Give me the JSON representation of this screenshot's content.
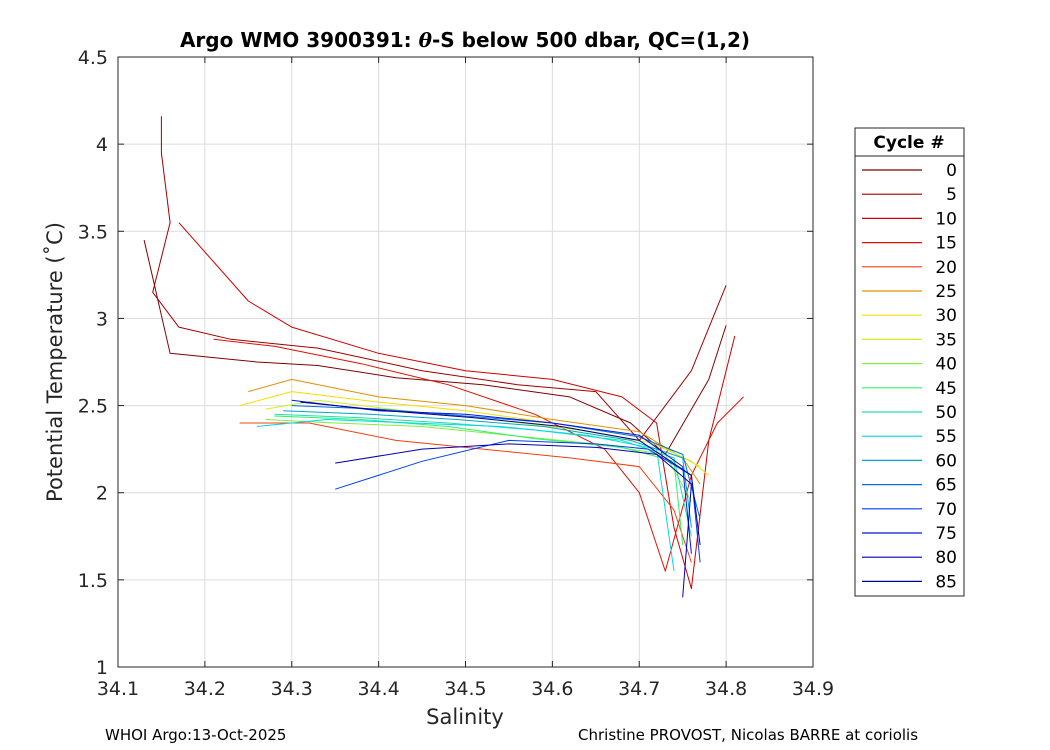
{
  "chart_data": {
    "type": "line",
    "title": "Argo WMO 3900391: θ-S below 500 dbar,  QC=(1,2)",
    "title_prefix": "Argo WMO 3900391: ",
    "title_theta": "θ",
    "title_suffix": "-S below 500 dbar,  QC=(1,2)",
    "xlabel": "Salinity",
    "ylabel": "Potential Temperature (˚C)",
    "xlim": [
      34.1,
      34.9
    ],
    "ylim": [
      1,
      4.5
    ],
    "xticks": [
      "34.1",
      "34.2",
      "34.3",
      "34.4",
      "34.5",
      "34.6",
      "34.7",
      "34.8",
      "34.9"
    ],
    "yticks": [
      "1",
      "1.5",
      "2",
      "2.5",
      "3",
      "3.5",
      "4",
      "4.5"
    ],
    "grid": true,
    "legend": {
      "title": "Cycle #",
      "placement": "right",
      "entries": [
        {
          "label": "0",
          "color": "#800000"
        },
        {
          "label": "5",
          "color": "#a00000"
        },
        {
          "label": "10",
          "color": "#cc0000"
        },
        {
          "label": "15",
          "color": "#e01000"
        },
        {
          "label": "20",
          "color": "#f04010"
        },
        {
          "label": "25",
          "color": "#e09000"
        },
        {
          "label": "30",
          "color": "#f0e000"
        },
        {
          "label": "35",
          "color": "#d0f020"
        },
        {
          "label": "40",
          "color": "#80f040"
        },
        {
          "label": "45",
          "color": "#30f070"
        },
        {
          "label": "50",
          "color": "#20e0b0"
        },
        {
          "label": "55",
          "color": "#00d8e8"
        },
        {
          "label": "60",
          "color": "#00a8c8"
        },
        {
          "label": "65",
          "color": "#0070e0"
        },
        {
          "label": "70",
          "color": "#0040f0"
        },
        {
          "label": "75",
          "color": "#0018e0"
        },
        {
          "label": "80",
          "color": "#0000b0"
        },
        {
          "label": "85",
          "color": "#000090"
        }
      ]
    },
    "series": [
      {
        "name": "0",
        "x": [
          34.13,
          34.16,
          34.2,
          34.26,
          34.33,
          34.42,
          34.52,
          34.62,
          34.69,
          34.73,
          34.78,
          34.8
        ],
        "y": [
          3.45,
          2.8,
          2.78,
          2.75,
          2.73,
          2.66,
          2.62,
          2.55,
          2.4,
          2.22,
          2.65,
          2.96
        ]
      },
      {
        "name": "5",
        "x": [
          34.15,
          34.15,
          34.16,
          34.14,
          34.17,
          34.23,
          34.33,
          34.45,
          34.56,
          34.65,
          34.7,
          34.76,
          34.8
        ],
        "y": [
          4.16,
          3.95,
          3.55,
          3.15,
          2.95,
          2.88,
          2.83,
          2.7,
          2.62,
          2.58,
          2.3,
          2.7,
          3.19
        ]
      },
      {
        "name": "10",
        "x": [
          34.17,
          34.25,
          34.3,
          34.4,
          34.5,
          34.6,
          34.68,
          34.72,
          34.74,
          34.76,
          34.78,
          34.81
        ],
        "y": [
          3.55,
          3.1,
          2.95,
          2.8,
          2.7,
          2.65,
          2.55,
          2.4,
          1.8,
          1.45,
          2.3,
          2.9
        ]
      },
      {
        "name": "15",
        "x": [
          34.21,
          34.28,
          34.38,
          34.48,
          34.58,
          34.66,
          34.7,
          34.73,
          34.76,
          34.79,
          34.82
        ],
        "y": [
          2.88,
          2.84,
          2.74,
          2.62,
          2.45,
          2.25,
          2.0,
          1.55,
          2.1,
          2.4,
          2.55
        ]
      },
      {
        "name": "20",
        "x": [
          34.24,
          34.32,
          34.42,
          34.52,
          34.62,
          34.7,
          34.74,
          34.76
        ],
        "y": [
          2.4,
          2.4,
          2.3,
          2.25,
          2.2,
          2.15,
          1.9,
          1.6
        ]
      },
      {
        "name": "25",
        "x": [
          34.25,
          34.3,
          34.4,
          34.5,
          34.6,
          34.7,
          34.75,
          34.77
        ],
        "y": [
          2.58,
          2.65,
          2.55,
          2.5,
          2.42,
          2.35,
          2.2,
          2.05
        ]
      },
      {
        "name": "30",
        "x": [
          34.24,
          34.3,
          34.4,
          34.5,
          34.6,
          34.7,
          34.76,
          34.78
        ],
        "y": [
          2.5,
          2.58,
          2.52,
          2.47,
          2.4,
          2.32,
          2.18,
          2.1
        ]
      },
      {
        "name": "35",
        "x": [
          34.27,
          34.33,
          34.43,
          34.53,
          34.63,
          34.72,
          34.77
        ],
        "y": [
          2.48,
          2.53,
          2.47,
          2.42,
          2.36,
          2.28,
          2.15
        ]
      },
      {
        "name": "40",
        "x": [
          34.27,
          34.35,
          34.45,
          34.55,
          34.65,
          34.73,
          34.76
        ],
        "y": [
          2.42,
          2.4,
          2.38,
          2.33,
          2.28,
          2.22,
          1.95
        ]
      },
      {
        "name": "45",
        "x": [
          34.28,
          34.38,
          34.48,
          34.58,
          34.68,
          34.74,
          34.75
        ],
        "y": [
          2.44,
          2.42,
          2.38,
          2.31,
          2.26,
          2.18,
          1.7
        ]
      },
      {
        "name": "50",
        "x": [
          34.28,
          34.38,
          34.48,
          34.58,
          34.68,
          34.74,
          34.76
        ],
        "y": [
          2.45,
          2.43,
          2.4,
          2.36,
          2.3,
          2.2,
          1.75
        ]
      },
      {
        "name": "55",
        "x": [
          34.26,
          34.34,
          34.44,
          34.54,
          34.64,
          34.72,
          34.74
        ],
        "y": [
          2.38,
          2.42,
          2.4,
          2.38,
          2.33,
          2.25,
          1.55
        ]
      },
      {
        "name": "60",
        "x": [
          34.29,
          34.39,
          34.49,
          34.59,
          34.69,
          34.75,
          34.76
        ],
        "y": [
          2.47,
          2.45,
          2.42,
          2.38,
          2.3,
          2.2,
          1.8
        ]
      },
      {
        "name": "65",
        "x": [
          34.3,
          34.4,
          34.5,
          34.6,
          34.7,
          34.75,
          34.77
        ],
        "y": [
          2.5,
          2.48,
          2.44,
          2.4,
          2.32,
          2.22,
          1.85
        ]
      },
      {
        "name": "70",
        "x": [
          34.35,
          34.45,
          34.55,
          34.65,
          34.71,
          34.76,
          34.77
        ],
        "y": [
          2.02,
          2.18,
          2.3,
          2.28,
          2.25,
          2.1,
          1.6
        ]
      },
      {
        "name": "75",
        "x": [
          34.3,
          34.4,
          34.5,
          34.6,
          34.7,
          34.75,
          34.76
        ],
        "y": [
          2.53,
          2.47,
          2.45,
          2.4,
          2.33,
          2.15,
          1.65
        ]
      },
      {
        "name": "80",
        "x": [
          34.35,
          34.45,
          34.55,
          34.65,
          34.72,
          34.76,
          34.75
        ],
        "y": [
          2.17,
          2.25,
          2.28,
          2.26,
          2.22,
          2.05,
          1.4
        ]
      },
      {
        "name": "85",
        "x": [
          34.31,
          34.41,
          34.51,
          34.61,
          34.7,
          34.76,
          34.77
        ],
        "y": [
          2.52,
          2.47,
          2.43,
          2.38,
          2.3,
          2.1,
          1.7
        ]
      }
    ]
  },
  "footer": {
    "left": "WHOI Argo:13-Oct-2025",
    "right": "Christine PROVOST, Nicolas BARRE at coriolis"
  }
}
